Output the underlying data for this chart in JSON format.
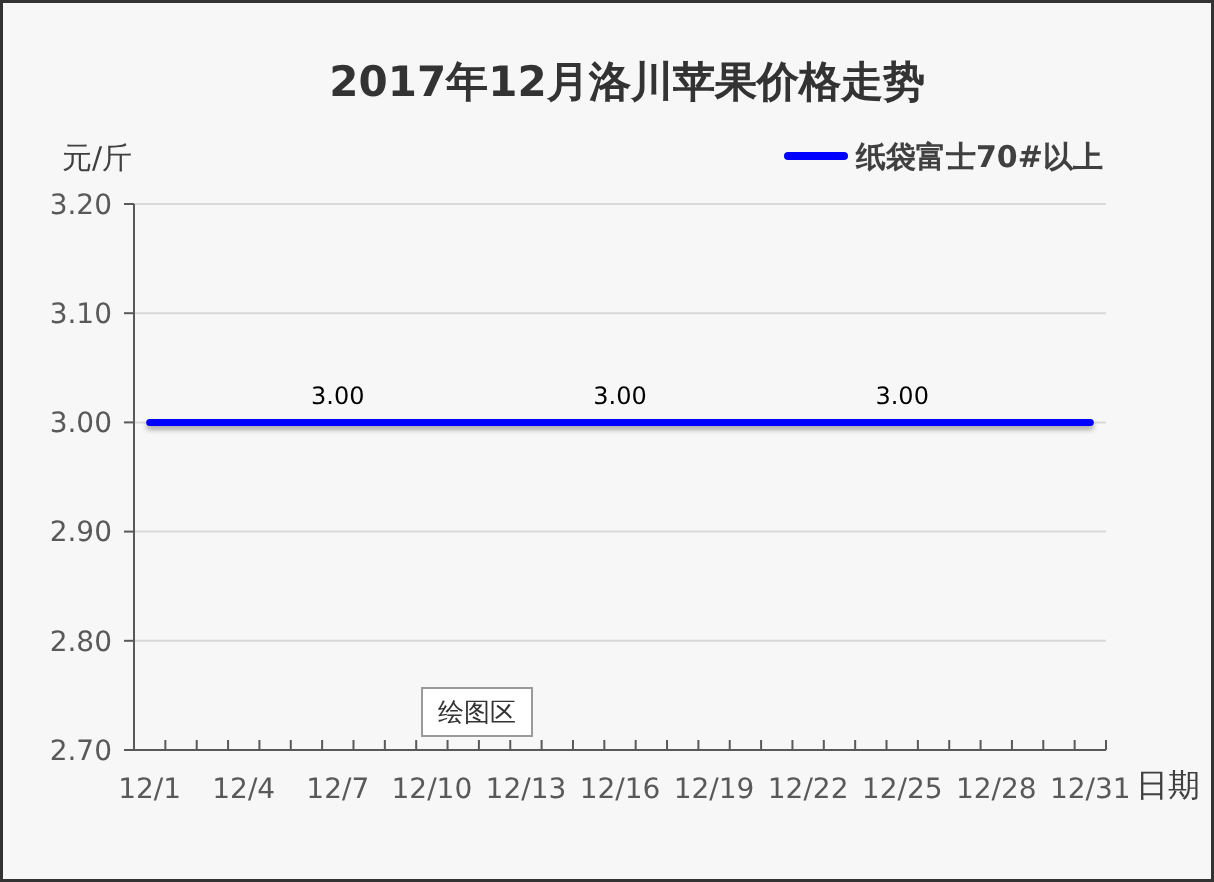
{
  "chart_data": {
    "type": "line",
    "title": "2017年12月洛川苹果价格走势",
    "ylabel": "元/斤",
    "xlabel": "日期",
    "categories": [
      "12/1",
      null,
      null,
      "12/4",
      null,
      null,
      "12/7",
      null,
      null,
      "12/10",
      null,
      null,
      "12/13",
      null,
      null,
      "12/16",
      null,
      null,
      "12/19",
      null,
      null,
      "12/22",
      null,
      null,
      "12/25",
      null,
      null,
      "12/28",
      null,
      null,
      "12/31"
    ],
    "series": [
      {
        "name": "纸袋富士70#以上",
        "color": "#0000ff",
        "values": [
          3.0,
          3.0,
          3.0,
          3.0,
          3.0,
          3.0,
          3.0,
          3.0,
          3.0,
          3.0,
          3.0,
          3.0,
          3.0,
          3.0,
          3.0,
          3.0,
          3.0,
          3.0,
          3.0,
          3.0,
          3.0,
          3.0,
          3.0,
          3.0,
          3.0,
          3.0,
          3.0,
          3.0,
          3.0,
          3.0,
          3.0
        ],
        "value_labels": [
          null,
          null,
          null,
          null,
          null,
          null,
          "3.00",
          null,
          null,
          null,
          null,
          null,
          null,
          null,
          null,
          "3.00",
          null,
          null,
          null,
          null,
          null,
          null,
          null,
          null,
          "3.00",
          null,
          null,
          null,
          null,
          null,
          null
        ]
      }
    ],
    "ylim": [
      2.7,
      3.2
    ],
    "yticks": [
      {
        "value": 2.7,
        "label": "2.70"
      },
      {
        "value": 2.8,
        "label": "2.80"
      },
      {
        "value": 2.9,
        "label": "2.90"
      },
      {
        "value": 3.0,
        "label": "3.00"
      },
      {
        "value": 3.1,
        "label": "3.10"
      },
      {
        "value": 3.2,
        "label": "3.20"
      }
    ],
    "grid": "y",
    "legend": "top right",
    "marker": "none",
    "line_style": "solid",
    "annotations": [
      "绘图区"
    ]
  }
}
